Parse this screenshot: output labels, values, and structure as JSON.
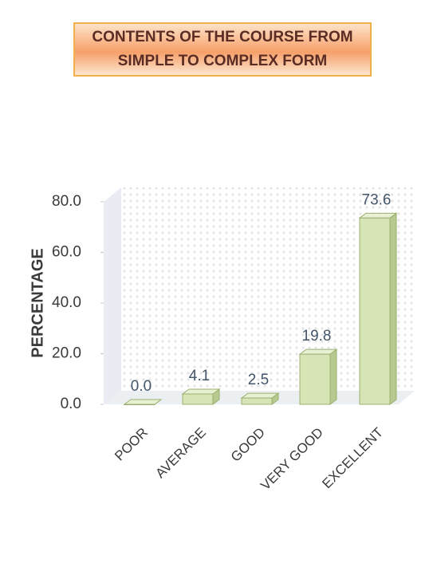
{
  "chart_data": {
    "type": "bar",
    "title": "CONTENTS OF THE COURSE FROM SIMPLE TO COMPLEX FORM",
    "y_label": "PERCENTAGE",
    "categories": [
      "POOR",
      "AVERAGE",
      "GOOD",
      "VERY GOOD",
      "EXCELLENT"
    ],
    "values": [
      0.0,
      4.1,
      2.5,
      19.8,
      73.6
    ],
    "value_labels": [
      "0.0",
      "4.1",
      "2.5",
      "19.8",
      "73.6"
    ],
    "color": "#d7e4b6",
    "ylim": [
      0,
      80
    ],
    "yticks": [
      {
        "value": 0,
        "label": "0.0"
      },
      {
        "value": 20,
        "label": "20.0"
      },
      {
        "value": 40,
        "label": "40.0"
      },
      {
        "value": 60,
        "label": "60.0"
      },
      {
        "value": 80,
        "label": "80.0"
      }
    ]
  }
}
